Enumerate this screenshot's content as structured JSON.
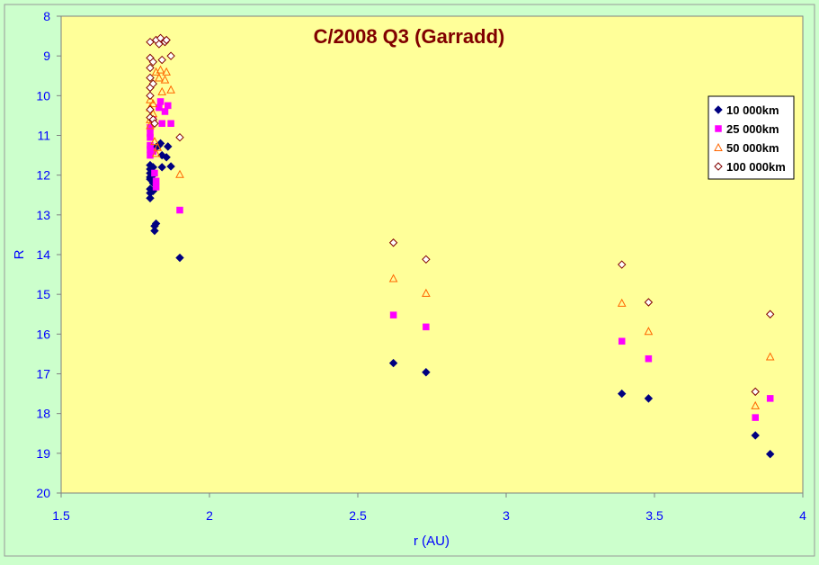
{
  "chart_data": {
    "type": "scatter",
    "title": "C/2008 Q3 (Garradd)",
    "xlabel": "r (AU)",
    "ylabel": "R",
    "xlim": [
      1.5,
      4
    ],
    "ylim": [
      8,
      20
    ],
    "y_inverted": true,
    "x_ticks": [
      "1.5",
      "2",
      "2.5",
      "3",
      "3.5",
      "4"
    ],
    "y_ticks": [
      "8",
      "9",
      "10",
      "11",
      "12",
      "13",
      "14",
      "15",
      "16",
      "17",
      "18",
      "19",
      "20"
    ],
    "grid": false,
    "legend_position": "top-right",
    "colors": {
      "background": "#ccffcc",
      "plot_area": "#ffff99",
      "title": "#800000",
      "axis_labels": "#0000ff"
    },
    "series": [
      {
        "name": "10 000km",
        "marker": "diamond-filled",
        "color": "#000080",
        "points": [
          [
            1.8,
            11.75
          ],
          [
            1.8,
            11.85
          ],
          [
            1.8,
            11.95
          ],
          [
            1.8,
            12.05
          ],
          [
            1.8,
            12.1
          ],
          [
            1.8,
            12.35
          ],
          [
            1.8,
            12.45
          ],
          [
            1.8,
            12.58
          ],
          [
            1.81,
            11.8
          ],
          [
            1.81,
            12.0
          ],
          [
            1.81,
            12.2
          ],
          [
            1.81,
            12.4
          ],
          [
            1.815,
            13.28
          ],
          [
            1.815,
            13.4
          ],
          [
            1.82,
            13.22
          ],
          [
            1.82,
            11.3
          ],
          [
            1.83,
            11.25
          ],
          [
            1.835,
            11.2
          ],
          [
            1.84,
            11.5
          ],
          [
            1.84,
            11.8
          ],
          [
            1.855,
            11.55
          ],
          [
            1.86,
            11.28
          ],
          [
            1.87,
            11.78
          ],
          [
            1.9,
            14.08
          ],
          [
            2.62,
            16.73
          ],
          [
            2.73,
            16.96
          ],
          [
            3.39,
            17.5
          ],
          [
            3.48,
            17.62
          ],
          [
            3.84,
            18.55
          ],
          [
            3.89,
            19.02
          ]
        ]
      },
      {
        "name": "25 000km",
        "marker": "square-filled",
        "color": "#ff00ff",
        "points": [
          [
            1.8,
            10.8
          ],
          [
            1.8,
            10.95
          ],
          [
            1.8,
            11.05
          ],
          [
            1.8,
            11.25
          ],
          [
            1.8,
            11.35
          ],
          [
            1.8,
            11.5
          ],
          [
            1.81,
            10.6
          ],
          [
            1.81,
            11.4
          ],
          [
            1.815,
            11.95
          ],
          [
            1.82,
            12.15
          ],
          [
            1.82,
            12.3
          ],
          [
            1.83,
            10.3
          ],
          [
            1.835,
            10.15
          ],
          [
            1.84,
            10.7
          ],
          [
            1.85,
            10.4
          ],
          [
            1.86,
            10.25
          ],
          [
            1.87,
            10.7
          ],
          [
            1.9,
            12.88
          ],
          [
            2.62,
            15.52
          ],
          [
            2.73,
            15.82
          ],
          [
            3.39,
            16.18
          ],
          [
            3.48,
            16.62
          ],
          [
            3.84,
            18.1
          ],
          [
            3.89,
            17.62
          ]
        ]
      },
      {
        "name": "50 000km",
        "marker": "triangle-open",
        "color": "#ff6600",
        "points": [
          [
            1.8,
            10.1
          ],
          [
            1.8,
            10.3
          ],
          [
            1.8,
            10.6
          ],
          [
            1.8,
            10.75
          ],
          [
            1.81,
            10.2
          ],
          [
            1.81,
            10.45
          ],
          [
            1.815,
            11.15
          ],
          [
            1.82,
            11.45
          ],
          [
            1.825,
            11.3
          ],
          [
            1.82,
            9.4
          ],
          [
            1.83,
            9.55
          ],
          [
            1.835,
            9.35
          ],
          [
            1.84,
            9.9
          ],
          [
            1.85,
            9.6
          ],
          [
            1.855,
            9.4
          ],
          [
            1.87,
            9.85
          ],
          [
            1.9,
            11.98
          ],
          [
            2.62,
            14.6
          ],
          [
            2.73,
            14.97
          ],
          [
            3.39,
            15.22
          ],
          [
            3.48,
            15.93
          ],
          [
            3.84,
            17.8
          ],
          [
            3.89,
            16.57
          ]
        ]
      },
      {
        "name": "100 000km",
        "marker": "diamond-open",
        "color": "#800000",
        "points": [
          [
            1.8,
            8.65
          ],
          [
            1.8,
            9.05
          ],
          [
            1.8,
            9.3
          ],
          [
            1.8,
            9.55
          ],
          [
            1.8,
            9.8
          ],
          [
            1.8,
            10.0
          ],
          [
            1.8,
            10.35
          ],
          [
            1.8,
            10.55
          ],
          [
            1.81,
            9.15
          ],
          [
            1.81,
            9.7
          ],
          [
            1.81,
            10.6
          ],
          [
            1.815,
            10.7
          ],
          [
            1.82,
            8.6
          ],
          [
            1.83,
            8.7
          ],
          [
            1.835,
            8.55
          ],
          [
            1.84,
            9.1
          ],
          [
            1.85,
            8.65
          ],
          [
            1.855,
            8.6
          ],
          [
            1.87,
            9.0
          ],
          [
            1.9,
            11.05
          ],
          [
            2.62,
            13.7
          ],
          [
            2.73,
            14.12
          ],
          [
            3.39,
            14.25
          ],
          [
            3.48,
            15.2
          ],
          [
            3.84,
            17.45
          ],
          [
            3.89,
            15.5
          ]
        ]
      }
    ]
  }
}
